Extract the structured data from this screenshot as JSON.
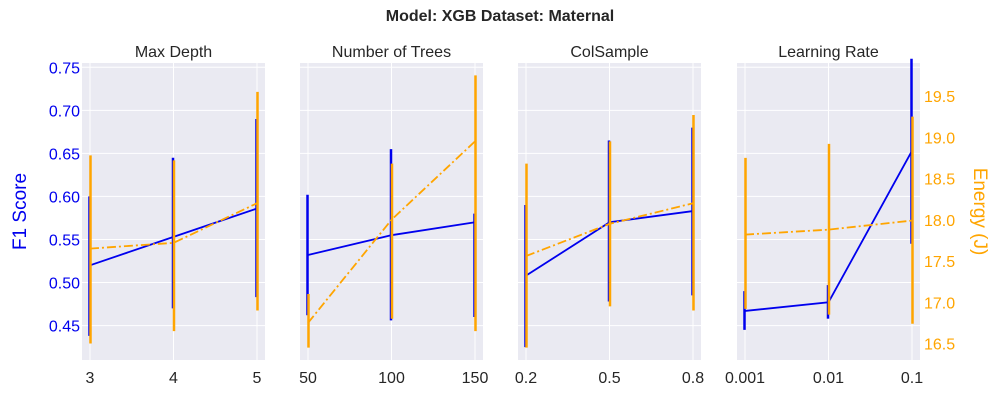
{
  "title": "Model: XGB Dataset: Maternal",
  "colors": {
    "f1": "#0000ee",
    "energy": "#ffa500",
    "panel_bg": "#eaeaf2",
    "grid": "#ffffff",
    "text": "#262626"
  },
  "chart_data": [
    {
      "type": "line",
      "title": "Max Depth",
      "categories": [
        "3",
        "4",
        "5"
      ],
      "ylabel_left": "F1 Score",
      "ylim_left": [
        0.41,
        0.755
      ],
      "yticks_left": [
        "0.45",
        "0.50",
        "0.55",
        "0.60",
        "0.65",
        "0.70",
        "0.75"
      ],
      "ylabel_right": "Energy (J)",
      "ylim_right": [
        16.3,
        19.9
      ],
      "yticks_right": [
        "16.5",
        "17.0",
        "17.5",
        "18.0",
        "18.5",
        "19.0",
        "19.5"
      ],
      "series": [
        {
          "name": "F1 Score",
          "axis": "left",
          "style": "solid",
          "values": [
            0.52,
            0.553,
            0.586
          ],
          "err_low": [
            0.438,
            0.47,
            0.483
          ],
          "err_high": [
            0.6,
            0.645,
            0.69
          ]
        },
        {
          "name": "Energy (J)",
          "axis": "right",
          "style": "dashdot",
          "values": [
            17.65,
            17.72,
            18.2
          ],
          "err_low": [
            16.5,
            16.65,
            16.9
          ],
          "err_high": [
            18.78,
            18.72,
            19.55
          ]
        }
      ]
    },
    {
      "type": "line",
      "title": "Number of Trees",
      "categories": [
        "50",
        "100",
        "150"
      ],
      "ylim_left": [
        0.41,
        0.755
      ],
      "ylim_right": [
        16.3,
        19.9
      ],
      "series": [
        {
          "name": "F1 Score",
          "axis": "left",
          "style": "solid",
          "values": [
            0.532,
            0.555,
            0.57
          ],
          "err_low": [
            0.462,
            0.456,
            0.46
          ],
          "err_high": [
            0.602,
            0.655,
            0.58
          ]
        },
        {
          "name": "Energy (J)",
          "axis": "right",
          "style": "dashdot",
          "values": [
            16.75,
            18.0,
            18.95
          ],
          "err_low": [
            16.45,
            16.8,
            16.65
          ],
          "err_high": [
            17.1,
            18.68,
            19.75
          ]
        }
      ]
    },
    {
      "type": "line",
      "title": "ColSample",
      "categories": [
        "0.2",
        "0.5",
        "0.8"
      ],
      "ylim_left": [
        0.41,
        0.755
      ],
      "ylim_right": [
        16.3,
        19.9
      ],
      "series": [
        {
          "name": "F1 Score",
          "axis": "left",
          "style": "solid",
          "values": [
            0.508,
            0.57,
            0.583
          ],
          "err_low": [
            0.425,
            0.478,
            0.485
          ],
          "err_high": [
            0.59,
            0.665,
            0.68
          ]
        },
        {
          "name": "Energy (J)",
          "axis": "right",
          "style": "dashdot",
          "values": [
            17.56,
            17.95,
            18.2
          ],
          "err_low": [
            16.45,
            16.95,
            16.9
          ],
          "err_high": [
            18.68,
            18.95,
            19.27
          ]
        }
      ]
    },
    {
      "type": "line",
      "title": "Learning Rate",
      "categories": [
        "0.001",
        "0.01",
        "0.1"
      ],
      "ylim_left": [
        0.41,
        0.755
      ],
      "ylim_right": [
        16.3,
        19.9
      ],
      "yticks_right": [
        "16.5",
        "17.0",
        "17.5",
        "18.0",
        "18.5",
        "19.0",
        "19.5"
      ],
      "ylabel_right": "Energy (J)",
      "series": [
        {
          "name": "F1 Score",
          "axis": "left",
          "style": "solid",
          "values": [
            0.467,
            0.477,
            0.653
          ],
          "err_low": [
            0.445,
            0.458,
            0.545
          ],
          "err_high": [
            0.49,
            0.497,
            0.76
          ]
        },
        {
          "name": "Energy (J)",
          "axis": "right",
          "style": "dashdot",
          "values": [
            17.82,
            17.88,
            17.99
          ],
          "err_low": [
            16.92,
            16.85,
            16.74
          ],
          "err_high": [
            18.75,
            18.92,
            19.25
          ]
        }
      ]
    }
  ]
}
